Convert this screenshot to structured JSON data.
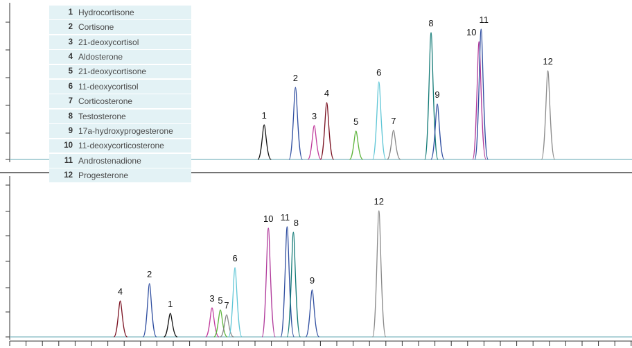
{
  "chart_data": {
    "type": "line",
    "title": "",
    "xlabel": "",
    "ylabel": "",
    "legend_placement": "top-left",
    "compounds": [
      {
        "id": "1",
        "name": "Hydrocortisone"
      },
      {
        "id": "2",
        "name": "Cortisone"
      },
      {
        "id": "3",
        "name": "21-deoxycortisol"
      },
      {
        "id": "4",
        "name": "Aldosterone"
      },
      {
        "id": "5",
        "name": "21-deoxycortisone"
      },
      {
        "id": "6",
        "name": "11-deoxycortisol"
      },
      {
        "id": "7",
        "name": "Corticosterone"
      },
      {
        "id": "8",
        "name": "Testosterone"
      },
      {
        "id": "9",
        "name": "17a-hydroxyprogesterone"
      },
      {
        "id": "10",
        "name": "11-deoxycorticosterone"
      },
      {
        "id": "11",
        "name": "Androstenadione"
      },
      {
        "id": "12",
        "name": "Progesterone"
      }
    ],
    "series_colors": {
      "1": "#111111",
      "2": "#2f4ea0",
      "3": "#c13b9c",
      "4": "#7a1020",
      "5": "#5cb33a",
      "6": "#5fc6d6",
      "7": "#888888",
      "8": "#127a76",
      "9": "#2f4ea0",
      "10": "#b0389a",
      "11": "#2f4ea0",
      "12": "#8a8a8a"
    },
    "panels": [
      {
        "name": "top",
        "peaks": [
          {
            "label": "1",
            "x": 12.2,
            "height": 50
          },
          {
            "label": "2",
            "x": 13.7,
            "height": 104
          },
          {
            "label": "3",
            "x": 14.6,
            "height": 49
          },
          {
            "label": "4",
            "x": 15.2,
            "height": 82
          },
          {
            "label": "5",
            "x": 16.6,
            "height": 41
          },
          {
            "label": "6",
            "x": 17.7,
            "height": 112
          },
          {
            "label": "7",
            "x": 18.4,
            "height": 42
          },
          {
            "label": "8",
            "x": 20.2,
            "height": 183
          },
          {
            "label": "9",
            "x": 20.5,
            "height": 80
          },
          {
            "label": "10",
            "x": 22.5,
            "height": 170
          },
          {
            "label": "11",
            "x": 22.6,
            "height": 188
          },
          {
            "label": "12",
            "x": 25.8,
            "height": 128
          }
        ]
      },
      {
        "name": "bottom",
        "peaks": [
          {
            "label": "4",
            "x": 5.3,
            "height": 52
          },
          {
            "label": "2",
            "x": 6.7,
            "height": 77
          },
          {
            "label": "1",
            "x": 7.7,
            "height": 34
          },
          {
            "label": "3",
            "x": 9.7,
            "height": 42
          },
          {
            "label": "5",
            "x": 10.1,
            "height": 39
          },
          {
            "label": "7",
            "x": 10.4,
            "height": 32
          },
          {
            "label": "6",
            "x": 10.8,
            "height": 100
          },
          {
            "label": "10",
            "x": 12.4,
            "height": 157
          },
          {
            "label": "11",
            "x": 13.3,
            "height": 159
          },
          {
            "label": "8",
            "x": 13.6,
            "height": 151
          },
          {
            "label": "9",
            "x": 14.5,
            "height": 68
          },
          {
            "label": "12",
            "x": 17.7,
            "height": 182
          }
        ]
      }
    ]
  }
}
